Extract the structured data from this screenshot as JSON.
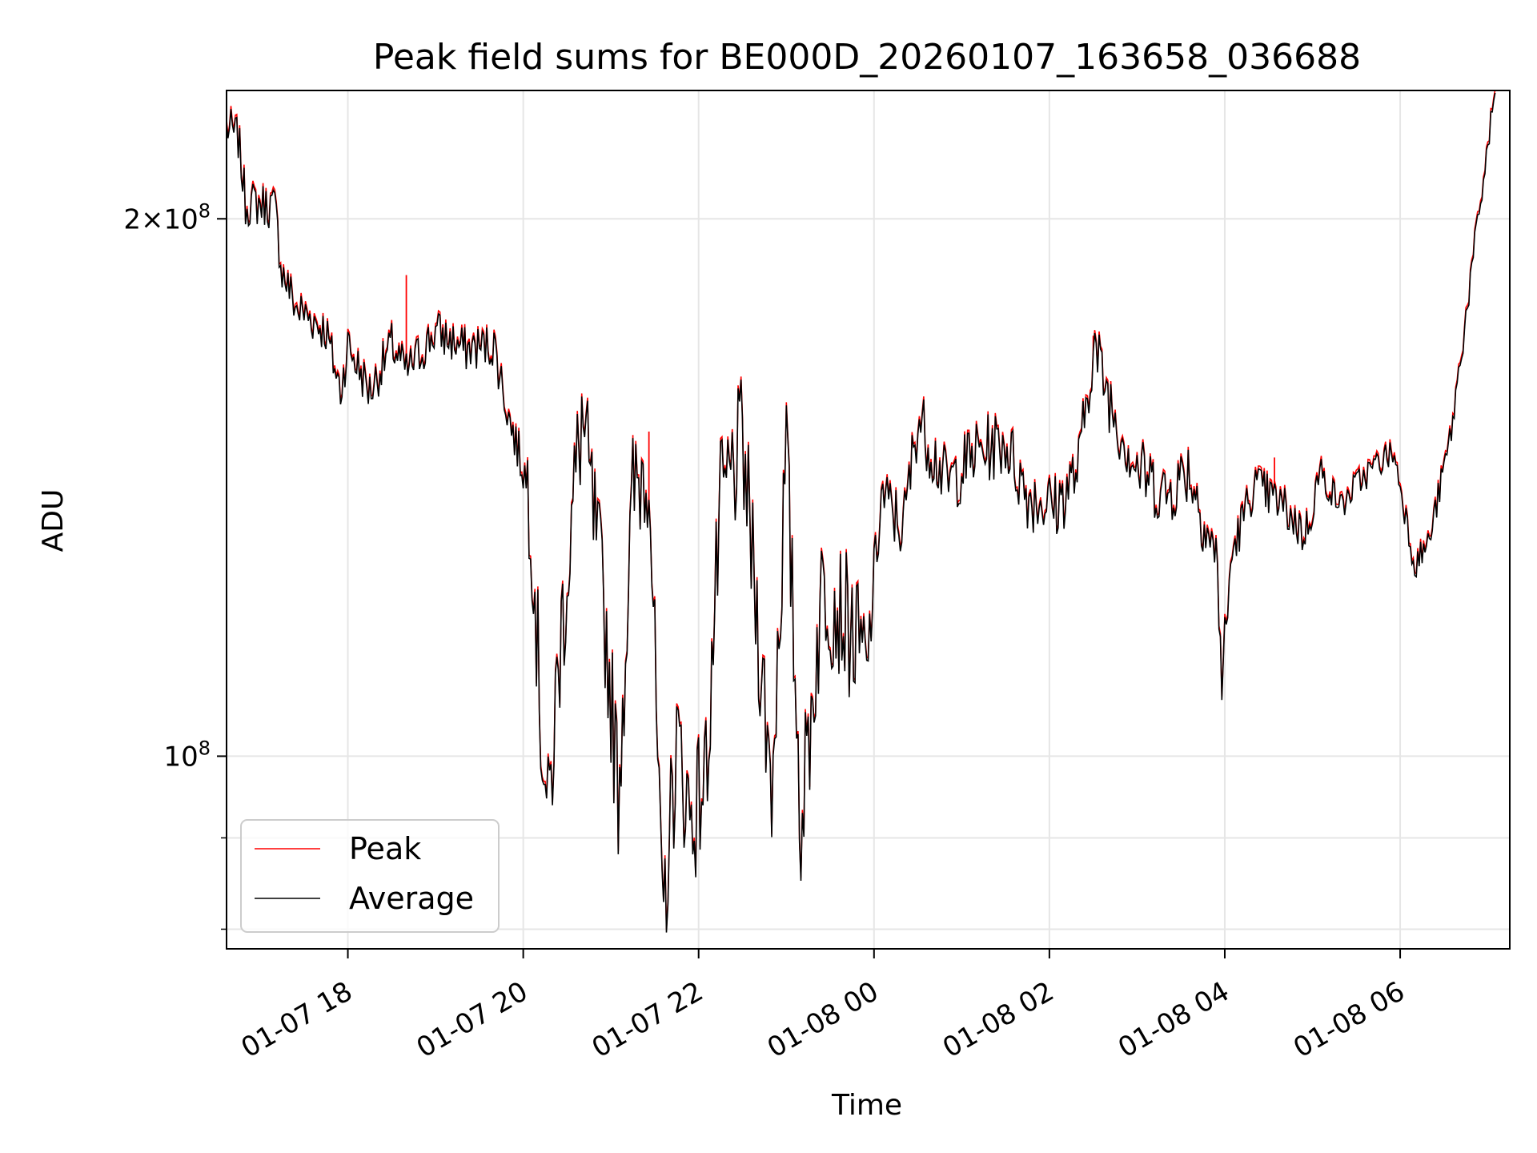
{
  "chart_data": {
    "type": "line",
    "title": "Peak field sums for BE000D_20260107_163658_036688",
    "xlabel": "Time",
    "ylabel": "ADU",
    "y_scale": "log",
    "ylim": [
      78000000,
      236000000
    ],
    "xlim": [
      "2026-01-07 16:37",
      "2026-01-08 07:15"
    ],
    "grid": true,
    "legend_position": "lower-left",
    "x_ticks": [
      {
        "t": "2026-01-07 18:00",
        "label": "01-07 18"
      },
      {
        "t": "2026-01-07 20:00",
        "label": "01-07 20"
      },
      {
        "t": "2026-01-07 22:00",
        "label": "01-07 22"
      },
      {
        "t": "2026-01-08 00:00",
        "label": "01-08 00"
      },
      {
        "t": "2026-01-08 02:00",
        "label": "01-08 02"
      },
      {
        "t": "2026-01-08 04:00",
        "label": "01-08 04"
      },
      {
        "t": "2026-01-08 06:00",
        "label": "01-08 06"
      }
    ],
    "y_major_ticks": [
      {
        "value": 100000000,
        "base": "10",
        "exp": "8"
      },
      {
        "value": 200000000,
        "base": "2×10",
        "exp": "8"
      }
    ],
    "y_minor_ticks": [
      80000000,
      90000000
    ],
    "series": [
      {
        "name": "Peak",
        "color": "#ff0000",
        "spikes": [
          {
            "t": "2026-01-07 18:40",
            "value": 186000000
          },
          {
            "t": "2026-01-07 21:26",
            "value": 152000000
          },
          {
            "t": "2026-01-08 04:34",
            "value": 147000000
          },
          {
            "t": "2026-01-08 02:30",
            "value": 172000000
          }
        ]
      },
      {
        "name": "Average",
        "color": "#000000",
        "anchors": [
          [
            "2026-01-07 16:37",
            225000000.0
          ],
          [
            "2026-01-07 16:45",
            222000000.0
          ],
          [
            "2026-01-07 16:50",
            204000000.0
          ],
          [
            "2026-01-07 17:00",
            204000000.0
          ],
          [
            "2026-01-07 17:10",
            203000000.0
          ],
          [
            "2026-01-07 17:15",
            187000000.0
          ],
          [
            "2026-01-07 17:25",
            178000000.0
          ],
          [
            "2026-01-07 17:35",
            176000000.0
          ],
          [
            "2026-01-07 17:45",
            173000000.0
          ],
          [
            "2026-01-07 17:55",
            160000000.0
          ],
          [
            "2026-01-07 18:00",
            170000000.0
          ],
          [
            "2026-01-07 18:15",
            160000000.0
          ],
          [
            "2026-01-07 18:30",
            170000000.0
          ],
          [
            "2026-01-07 18:40",
            164000000.0
          ],
          [
            "2026-01-07 19:00",
            173000000.0
          ],
          [
            "2026-01-07 19:20",
            169000000.0
          ],
          [
            "2026-01-07 19:40",
            170000000.0
          ],
          [
            "2026-01-07 19:50",
            155000000.0
          ],
          [
            "2026-01-07 20:05",
            140000000.0
          ],
          [
            "2026-01-07 20:12",
            105000000.0
          ],
          [
            "2026-01-07 20:17",
            92000000.0
          ],
          [
            "2026-01-07 20:25",
            115000000.0
          ],
          [
            "2026-01-07 20:40",
            155000000.0
          ],
          [
            "2026-01-07 20:55",
            122000000.0
          ],
          [
            "2026-01-07 21:05",
            96000000.0
          ],
          [
            "2026-01-07 21:15",
            140000000.0
          ],
          [
            "2026-01-07 21:26",
            148000000.0
          ],
          [
            "2026-01-07 21:35",
            80000000.0
          ],
          [
            "2026-01-07 21:45",
            102000000.0
          ],
          [
            "2026-01-07 21:55",
            92000000.0
          ],
          [
            "2026-01-07 22:05",
            98000000.0
          ],
          [
            "2026-01-07 22:15",
            138000000.0
          ],
          [
            "2026-01-07 22:30",
            150000000.0
          ],
          [
            "2026-01-07 22:50",
            96000000.0
          ],
          [
            "2026-01-07 23:00",
            148000000.0
          ],
          [
            "2026-01-07 23:10",
            92000000.0
          ],
          [
            "2026-01-07 23:25",
            125000000.0
          ],
          [
            "2026-01-07 23:40",
            120000000.0
          ],
          [
            "2026-01-07 23:55",
            112000000.0
          ],
          [
            "2026-01-08 00:05",
            140000000.0
          ],
          [
            "2026-01-08 00:20",
            134000000.0
          ],
          [
            "2026-01-08 00:30",
            155000000.0
          ],
          [
            "2026-01-08 00:50",
            142000000.0
          ],
          [
            "2026-01-08 01:10",
            148000000.0
          ],
          [
            "2026-01-08 01:30",
            150000000.0
          ],
          [
            "2026-01-08 01:45",
            140000000.0
          ],
          [
            "2026-01-08 02:05",
            138000000.0
          ],
          [
            "2026-01-08 02:20",
            145000000.0
          ],
          [
            "2026-01-08 02:30",
            170000000.0
          ],
          [
            "2026-01-08 02:45",
            155000000.0
          ],
          [
            "2026-01-08 03:00",
            145000000.0
          ],
          [
            "2026-01-08 03:20",
            140000000.0
          ],
          [
            "2026-01-08 03:35",
            145000000.0
          ],
          [
            "2026-01-08 03:55",
            128000000.0
          ],
          [
            "2026-01-08 03:58",
            110000000.0
          ],
          [
            "2026-01-08 04:05",
            130000000.0
          ],
          [
            "2026-01-08 04:20",
            142000000.0
          ],
          [
            "2026-01-08 04:40",
            138000000.0
          ],
          [
            "2026-01-08 04:55",
            133000000.0
          ],
          [
            "2026-01-08 05:05",
            144000000.0
          ],
          [
            "2026-01-08 05:20",
            138000000.0
          ],
          [
            "2026-01-08 05:30",
            142000000.0
          ],
          [
            "2026-01-08 05:45",
            146000000.0
          ],
          [
            "2026-01-08 05:55",
            148000000.0
          ],
          [
            "2026-01-08 06:00",
            142000000.0
          ],
          [
            "2026-01-08 06:10",
            128000000.0
          ],
          [
            "2026-01-08 06:20",
            132000000.0
          ],
          [
            "2026-01-08 06:35",
            152000000.0
          ],
          [
            "2026-01-08 06:50",
            190000000.0
          ],
          [
            "2026-01-08 07:05",
            236000000.0
          ]
        ]
      }
    ]
  }
}
